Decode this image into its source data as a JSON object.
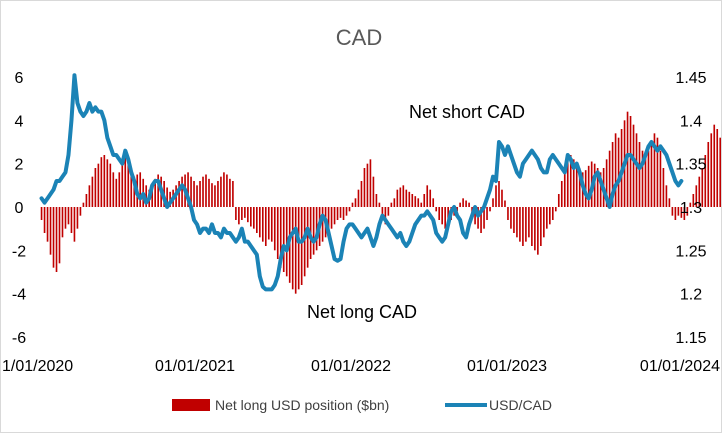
{
  "chart_data": {
    "type": "bar+line",
    "title": "CAD",
    "x_ticks": [
      "1/01/2020",
      "01/01/2021",
      "01/01/2022",
      "01/01/2023",
      "01/01/2024"
    ],
    "x_range": [
      "2020-01-01",
      "2024-01-01"
    ],
    "y_left": {
      "ticks": [
        "6",
        "4",
        "2",
        "0",
        "-2",
        "-4",
        "-6"
      ],
      "range": [
        -6,
        6
      ]
    },
    "y_right": {
      "ticks": [
        "1.45",
        "1.4",
        "1.35",
        "1.3",
        "1.25",
        "1.2",
        "1.15"
      ],
      "range": [
        1.15,
        1.45
      ]
    },
    "annotations": [
      "Net short CAD",
      "Net long CAD"
    ],
    "legend_position": "bottom",
    "series": [
      {
        "name": "Net long USD position ($bn)",
        "type": "bar",
        "axis": "left",
        "color": "#c00000",
        "x_start": "2020-01-07",
        "step_days": 7,
        "values": [
          -0.6,
          -1.2,
          -1.6,
          -2.2,
          -2.8,
          -3.0,
          -2.6,
          -1.4,
          -1.0,
          -0.8,
          -1.2,
          -1.6,
          -1.0,
          -0.4,
          0.2,
          0.6,
          1.0,
          1.4,
          1.8,
          2.0,
          2.3,
          2.4,
          2.2,
          2.0,
          1.6,
          1.3,
          1.6,
          2.0,
          2.4,
          2.2,
          1.8,
          1.4,
          1.5,
          1.6,
          1.3,
          1.0,
          0.8,
          1.0,
          1.3,
          1.5,
          1.4,
          1.2,
          0.9,
          0.7,
          0.8,
          1.0,
          1.2,
          1.4,
          1.5,
          1.6,
          1.4,
          1.2,
          1.0,
          1.2,
          1.4,
          1.5,
          1.3,
          1.1,
          1.0,
          1.2,
          1.4,
          1.6,
          1.5,
          1.3,
          1.2,
          -0.6,
          -0.8,
          -0.6,
          -0.5,
          -0.7,
          -0.9,
          -1.0,
          -1.2,
          -1.4,
          -1.6,
          -1.8,
          -1.5,
          -1.6,
          -2.0,
          -2.4,
          -2.8,
          -3.0,
          -3.2,
          -3.5,
          -3.8,
          -4.0,
          -3.8,
          -3.6,
          -3.2,
          -2.8,
          -2.4,
          -2.2,
          -2.0,
          -1.8,
          -1.6,
          -1.4,
          -1.2,
          -1.0,
          -0.8,
          -0.6,
          -0.5,
          -0.6,
          -0.4,
          -0.2,
          0.2,
          0.4,
          0.8,
          1.2,
          1.8,
          2.0,
          2.2,
          1.4,
          0.6,
          0.2,
          -0.4,
          -0.8,
          -0.4,
          0.2,
          0.4,
          0.8,
          0.9,
          1.0,
          0.8,
          0.7,
          0.6,
          0.5,
          0.4,
          0.2,
          0.6,
          1.0,
          0.8,
          0.4,
          -0.2,
          -0.6,
          -0.8,
          -1.0,
          -0.8,
          -0.6,
          -0.4,
          -0.2,
          0.2,
          0.4,
          0.3,
          0.2,
          -0.4,
          -0.8,
          -1.0,
          -1.2,
          -1.0,
          -0.6,
          -0.2,
          0.4,
          1.0,
          1.2,
          0.8,
          0.3,
          -0.6,
          -1.0,
          -1.2,
          -1.4,
          -1.6,
          -1.8,
          -1.6,
          -1.4,
          -1.8,
          -2.0,
          -2.2,
          -1.8,
          -1.4,
          -1.0,
          -0.8,
          -0.6,
          -0.2,
          0.6,
          1.2,
          1.8,
          2.2,
          2.4,
          2.2,
          2.0,
          1.8,
          1.6,
          1.7,
          1.9,
          2.1,
          2.0,
          1.8,
          1.6,
          1.8,
          2.2,
          2.6,
          3.0,
          3.4,
          3.2,
          3.6,
          4.0,
          4.4,
          4.2,
          3.8,
          3.4,
          3.0,
          2.6,
          2.4,
          2.6,
          3.0,
          3.4,
          3.2,
          2.6,
          1.8,
          1.0,
          0.4,
          -0.4,
          -0.6,
          -0.4,
          -0.5,
          -0.6,
          -0.4,
          0.2,
          0.6,
          1.0,
          1.4,
          1.8,
          2.4,
          3.0,
          3.4,
          3.8,
          3.6,
          3.2,
          3.6,
          4.0,
          4.4,
          4.0,
          3.8,
          4.4,
          4.8,
          5.2,
          5.0,
          4.6,
          4.2,
          4.4,
          4.0,
          3.4,
          2.6
        ]
      },
      {
        "name": "USD/CAD",
        "type": "line",
        "axis": "right",
        "color": "#1b83b6",
        "x_start": "2020-01-07",
        "step_days": 7,
        "values": [
          1.31,
          1.305,
          1.31,
          1.315,
          1.32,
          1.33,
          1.33,
          1.335,
          1.34,
          1.36,
          1.4,
          1.452,
          1.42,
          1.41,
          1.405,
          1.41,
          1.42,
          1.41,
          1.415,
          1.41,
          1.41,
          1.4,
          1.38,
          1.37,
          1.36,
          1.36,
          1.355,
          1.35,
          1.365,
          1.355,
          1.34,
          1.33,
          1.315,
          1.31,
          1.315,
          1.305,
          1.31,
          1.325,
          1.33,
          1.33,
          1.32,
          1.31,
          1.3,
          1.305,
          1.31,
          1.315,
          1.32,
          1.325,
          1.32,
          1.31,
          1.3,
          1.285,
          1.28,
          1.27,
          1.275,
          1.275,
          1.27,
          1.28,
          1.27,
          1.27,
          1.265,
          1.275,
          1.27,
          1.27,
          1.265,
          1.26,
          1.265,
          1.275,
          1.26,
          1.26,
          1.255,
          1.25,
          1.245,
          1.22,
          1.208,
          1.205,
          1.205,
          1.205,
          1.21,
          1.22,
          1.24,
          1.255,
          1.25,
          1.265,
          1.27,
          1.275,
          1.26,
          1.26,
          1.265,
          1.275,
          1.265,
          1.26,
          1.265,
          1.28,
          1.29,
          1.285,
          1.27,
          1.255,
          1.24,
          1.238,
          1.24,
          1.26,
          1.275,
          1.28,
          1.28,
          1.275,
          1.27,
          1.265,
          1.27,
          1.275,
          1.265,
          1.255,
          1.265,
          1.28,
          1.29,
          1.285,
          1.28,
          1.275,
          1.27,
          1.265,
          1.27,
          1.26,
          1.255,
          1.26,
          1.27,
          1.28,
          1.285,
          1.29,
          1.29,
          1.295,
          1.29,
          1.285,
          1.27,
          1.265,
          1.26,
          1.265,
          1.28,
          1.295,
          1.3,
          1.29,
          1.285,
          1.27,
          1.265,
          1.28,
          1.29,
          1.3,
          1.29,
          1.295,
          1.3,
          1.31,
          1.32,
          1.335,
          1.33,
          1.375,
          1.37,
          1.36,
          1.37,
          1.36,
          1.35,
          1.34,
          1.335,
          1.35,
          1.355,
          1.36,
          1.365,
          1.36,
          1.355,
          1.345,
          1.34,
          1.34,
          1.355,
          1.36,
          1.355,
          1.35,
          1.345,
          1.34,
          1.36,
          1.355,
          1.345,
          1.35,
          1.34,
          1.325,
          1.315,
          1.31,
          1.32,
          1.335,
          1.34,
          1.33,
          1.32,
          1.31,
          1.3,
          1.315,
          1.325,
          1.33,
          1.34,
          1.35,
          1.36,
          1.36,
          1.355,
          1.35,
          1.345,
          1.35,
          1.36,
          1.37,
          1.375,
          1.37,
          1.365,
          1.37,
          1.365,
          1.36,
          1.35,
          1.34,
          1.33,
          1.325,
          1.33
        ]
      }
    ]
  }
}
